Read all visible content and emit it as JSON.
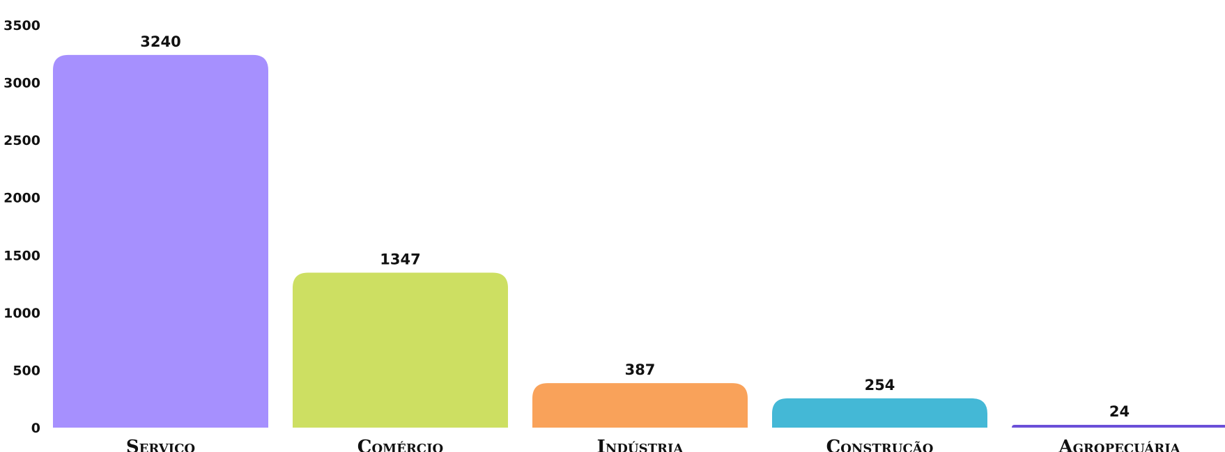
{
  "chart_data": {
    "type": "bar",
    "categories": [
      "Serviço",
      "Comércio",
      "Indústria",
      "Construção",
      "Agropecuária"
    ],
    "values": [
      3240,
      1347,
      387,
      254,
      24
    ],
    "colors": [
      "#a690fe",
      "#cddf62",
      "#f9a25a",
      "#44b8d6",
      "#6b4fd8"
    ],
    "ylim": [
      0,
      3500
    ],
    "yticks": [
      0,
      500,
      1000,
      1500,
      2000,
      2500,
      3000,
      3500
    ],
    "grid": false
  }
}
